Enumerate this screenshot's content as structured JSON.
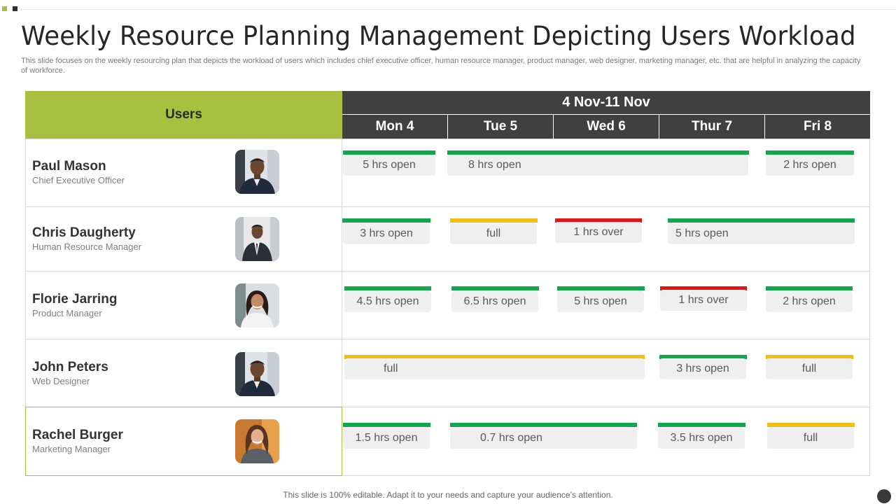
{
  "title": "Weekly Resource Planning Management Depicting Users Workload",
  "subtitle": "This slide focuses on the weekly resourcing plan that depicts the workload of users which includes chief executive officer, human resource manager, product manager, web designer, marketing manager, etc. that are helpful in analyzing the capacity of workforce.",
  "table": {
    "users_header": "Users",
    "week_header": "4 Nov-11 Nov",
    "days": [
      "Mon 4",
      "Tue 5",
      "Wed 6",
      "Thur 7",
      "Fri 8"
    ]
  },
  "users": [
    {
      "name": "Paul Mason",
      "role": "Chief Executive Officer",
      "avatar": "man-dark-jacket-photo",
      "slots": [
        {
          "label": "5 hrs open",
          "status": "green",
          "days": [
            "Mon 4"
          ]
        },
        {
          "label": "8 hrs open",
          "status": "green",
          "days": [
            "Tue 5",
            "Wed 6",
            "Thur 7"
          ]
        },
        {
          "label": "2 hrs open",
          "status": "green",
          "days": [
            "Fri 8"
          ]
        }
      ]
    },
    {
      "name": "Chris Daugherty",
      "role": "Human Resource Manager",
      "avatar": "man-suit-photo",
      "slots": [
        {
          "label": "3 hrs open",
          "status": "green",
          "days": [
            "Mon 4"
          ]
        },
        {
          "label": "full",
          "status": "yellow",
          "days": [
            "Tue 5"
          ]
        },
        {
          "label": "1 hrs over",
          "status": "red",
          "days": [
            "Wed 6"
          ]
        },
        {
          "label": "5 hrs open",
          "status": "green",
          "days": [
            "Thur 7",
            "Fri 8"
          ]
        }
      ]
    },
    {
      "name": "Florie Jarring",
      "role": "Product Manager",
      "avatar": "woman-smiling-photo",
      "slots": [
        {
          "label": "4.5 hrs open",
          "status": "green",
          "days": [
            "Mon 4"
          ]
        },
        {
          "label": "6.5 hrs open",
          "status": "green",
          "days": [
            "Tue 5"
          ]
        },
        {
          "label": "5 hrs open",
          "status": "green",
          "days": [
            "Wed 6"
          ]
        },
        {
          "label": "1 hrs over",
          "status": "red",
          "days": [
            "Thur 7"
          ]
        },
        {
          "label": "2 hrs open",
          "status": "green",
          "days": [
            "Fri 8"
          ]
        }
      ]
    },
    {
      "name": "John Peters",
      "role": "Web Designer",
      "avatar": "man-dark-jacket-photo",
      "slots": [
        {
          "label": "full",
          "status": "yellow",
          "days": [
            "Mon 4",
            "Tue 5",
            "Wed 6"
          ]
        },
        {
          "label": "3 hrs open",
          "status": "green",
          "days": [
            "Thur 7"
          ]
        },
        {
          "label": "full",
          "status": "yellow",
          "days": [
            "Fri 8"
          ]
        }
      ]
    },
    {
      "name": "Rachel Burger",
      "role": "Marketing Manager",
      "avatar": "woman-portrait-photo",
      "slots": [
        {
          "label": "1.5 hrs open",
          "status": "green",
          "days": [
            "Mon 4"
          ]
        },
        {
          "label": "0.7 hrs open",
          "status": "green",
          "days": [
            "Tue 5",
            "Wed 6"
          ]
        },
        {
          "label": "3.5 hrs open",
          "status": "green",
          "days": [
            "Thur 7"
          ]
        },
        {
          "label": "full",
          "status": "yellow",
          "days": [
            "Fri 8"
          ]
        }
      ]
    }
  ],
  "colors": {
    "accent_green": "#a8bf3f",
    "header_dark": "#404040",
    "status_green": "#10a84a",
    "status_yellow": "#f5bd14",
    "status_red": "#e31414"
  },
  "footer": "This slide is 100% editable. Adapt it to your needs and capture your audience’s attention."
}
